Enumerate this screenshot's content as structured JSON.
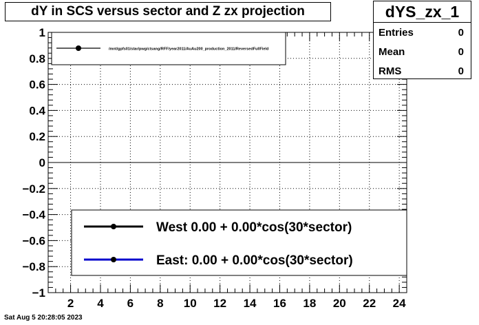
{
  "title": "dY in SCS versus sector and Z zx projection",
  "stats": {
    "name": "dYS_zx_1",
    "rows": [
      {
        "label": "Entries",
        "value": "0"
      },
      {
        "label": "Mean",
        "value": "0"
      },
      {
        "label": "RMS",
        "value": "0"
      }
    ]
  },
  "datestamp": "Sat Aug  5 20:28:05 2023",
  "colors": {
    "west": "#000000",
    "east": "#0000cc",
    "axis": "#000000"
  },
  "chart_data": {
    "type": "scatter",
    "title": "dY in SCS versus sector and Z zx projection",
    "xlim": [
      0.5,
      24.5
    ],
    "ylim": [
      -1,
      1
    ],
    "x_ticks": [
      2,
      4,
      6,
      8,
      10,
      12,
      14,
      16,
      18,
      20,
      22,
      24
    ],
    "y_ticks": [
      -1,
      -0.8,
      -0.6,
      -0.4,
      -0.2,
      0,
      0.2,
      0.4,
      0.6,
      0.8,
      1
    ],
    "grid": true,
    "zero_line": 0,
    "series": [
      {
        "name": "/mnt/gpfs01/star/pwg/ctsang/RFF/year2011/AuAu200_production_2011/ReversedFullField",
        "x": [],
        "y": []
      }
    ],
    "legend_top": {
      "entries": [
        "/mnt/gpfs01/star/pwg/ctsang/RFF/year2011/AuAu200_production_2011/ReversedFullField"
      ],
      "placement": "top-left"
    },
    "legend_fit": {
      "placement": "bottom-right",
      "entries": [
        {
          "label": "West  0.00 +  0.00*cos(30*sector)",
          "color": "#000000"
        },
        {
          "label": "East:  0.00 +  0.00*cos(30*sector)",
          "color": "#0000cc"
        }
      ]
    }
  }
}
